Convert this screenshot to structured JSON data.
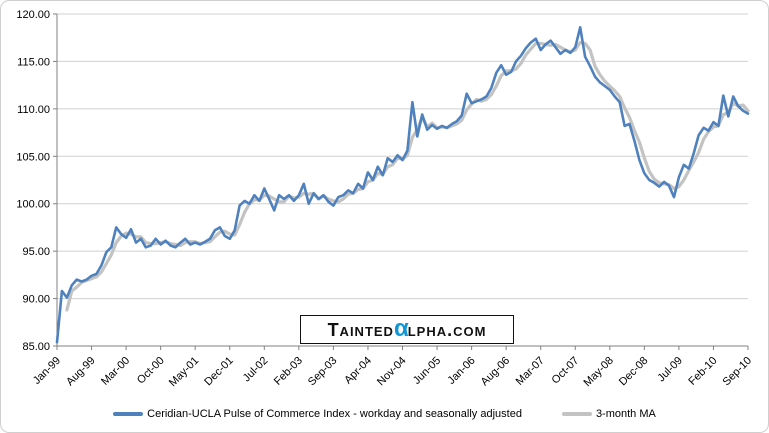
{
  "watermark": {
    "prefix": "Tainted",
    "alpha": "α",
    "suffix": "lpha.com",
    "alpha_color": "#1095d5"
  },
  "colors": {
    "background": "#ffffff",
    "chart_border": "#cfcfcf",
    "gridline": "#d0d0d0",
    "axis": "#808080",
    "series_blue": "#4F81BD",
    "series_gray": "#C3C3C3"
  },
  "chart_data": {
    "type": "line",
    "title": "",
    "xlabel": "",
    "ylabel": "",
    "ylim": [
      85,
      120
    ],
    "y_step": 5,
    "grid": "horizontal",
    "legend_position": "bottom",
    "x_unit": "month",
    "x_range": [
      "Jan-99",
      "Sep-10"
    ],
    "x_tick_interval_months": 7,
    "x_tick_labels": [
      "Jan-99",
      "Aug-99",
      "Mar-00",
      "Oct-00",
      "May-01",
      "Dec-01",
      "Jul-02",
      "Feb-03",
      "Sep-03",
      "Apr-04",
      "Nov-04",
      "Jun-05",
      "Jan-06",
      "Aug-06",
      "Mar-07",
      "Oct-07",
      "May-08",
      "Dec-08",
      "Jul-09",
      "Feb-10",
      "Sep-10"
    ],
    "y_tick_labels": [
      "120.00",
      "115.00",
      "110.00",
      "105.00",
      "100.00",
      "95.00",
      "90.00",
      "85.00"
    ],
    "series": [
      {
        "name": "Ceridian-UCLA Pulse of Commerce Index - workday and seasonally adjusted",
        "color": "#4F81BD",
        "stroke_width": 2.6,
        "values": [
          85.4,
          90.8,
          90.1,
          91.4,
          92.0,
          91.8,
          92.0,
          92.4,
          92.6,
          93.5,
          94.9,
          95.4,
          97.5,
          96.8,
          96.4,
          97.3,
          95.9,
          96.3,
          95.4,
          95.6,
          96.3,
          95.7,
          96.1,
          95.6,
          95.4,
          95.9,
          96.3,
          95.7,
          95.9,
          95.7,
          96.0,
          96.3,
          97.2,
          97.5,
          96.6,
          96.3,
          97.2,
          99.8,
          100.3,
          100.0,
          100.9,
          100.3,
          101.6,
          100.5,
          99.3,
          100.9,
          100.5,
          100.9,
          100.3,
          100.9,
          102.1,
          100.0,
          101.1,
          100.5,
          100.9,
          100.2,
          99.8,
          100.7,
          100.9,
          101.4,
          101.1,
          102.1,
          101.6,
          103.3,
          102.5,
          103.9,
          103.0,
          104.8,
          104.4,
          105.1,
          104.6,
          105.6,
          110.7,
          107.1,
          109.4,
          107.8,
          108.3,
          107.9,
          108.2,
          108.0,
          108.4,
          108.7,
          109.3,
          111.6,
          110.6,
          110.8,
          111.0,
          111.3,
          112.2,
          113.8,
          114.6,
          113.6,
          113.9,
          115.0,
          115.6,
          116.4,
          117.0,
          117.4,
          116.2,
          116.8,
          117.2,
          116.5,
          115.8,
          116.2,
          115.9,
          116.5,
          118.6,
          115.5,
          114.5,
          113.4,
          112.8,
          112.4,
          112.0,
          111.3,
          110.7,
          108.2,
          108.4,
          106.6,
          104.6,
          103.2,
          102.5,
          102.2,
          101.8,
          102.3,
          101.9,
          100.7,
          102.8,
          104.1,
          103.7,
          105.3,
          107.2,
          108.0,
          107.7,
          108.6,
          108.2,
          111.4,
          109.2,
          111.3,
          110.3,
          109.8,
          109.5
        ]
      },
      {
        "name": "3-month MA",
        "color": "#C3C3C3",
        "stroke_width": 3.2,
        "values": [
          null,
          null,
          88.8,
          90.8,
          91.2,
          91.7,
          91.9,
          92.1,
          92.3,
          92.8,
          93.7,
          94.6,
          95.9,
          96.6,
          96.9,
          96.8,
          96.5,
          96.5,
          95.9,
          95.8,
          95.8,
          95.9,
          96.0,
          95.8,
          95.7,
          95.6,
          95.9,
          96.0,
          96.0,
          95.8,
          95.9,
          96.0,
          96.5,
          97.0,
          97.1,
          96.8,
          96.7,
          97.8,
          99.1,
          100.0,
          100.4,
          100.4,
          100.9,
          100.8,
          100.5,
          100.2,
          100.2,
          100.8,
          100.6,
          100.7,
          101.1,
          101.0,
          101.1,
          100.5,
          100.8,
          100.5,
          100.3,
          100.2,
          100.5,
          101.0,
          101.1,
          101.5,
          101.6,
          102.3,
          102.5,
          103.2,
          103.1,
          103.9,
          104.1,
          104.8,
          104.7,
          105.1,
          107.0,
          107.8,
          109.1,
          108.1,
          108.5,
          108.0,
          108.1,
          108.0,
          108.2,
          108.4,
          108.8,
          109.9,
          110.5,
          111.0,
          110.8,
          111.0,
          111.5,
          112.4,
          113.5,
          114.0,
          114.0,
          114.2,
          114.8,
          115.7,
          116.3,
          116.9,
          116.9,
          116.8,
          116.7,
          116.8,
          116.5,
          116.2,
          116.0,
          116.2,
          117.0,
          116.9,
          116.2,
          114.5,
          113.6,
          112.9,
          112.4,
          111.9,
          111.3,
          110.1,
          109.1,
          107.7,
          106.5,
          104.8,
          103.4,
          102.6,
          102.2,
          102.1,
          102.0,
          101.6,
          101.8,
          102.5,
          103.5,
          104.4,
          105.4,
          106.8,
          107.6,
          108.1,
          108.2,
          109.4,
          109.6,
          110.6,
          110.3,
          110.4,
          109.8
        ]
      }
    ]
  }
}
